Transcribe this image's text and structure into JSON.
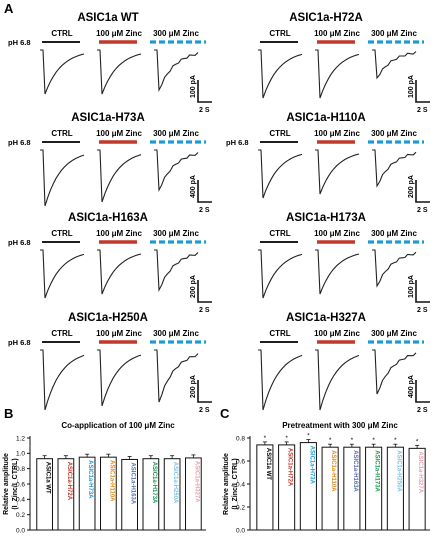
{
  "panel_letters": [
    "A",
    "B",
    "C"
  ],
  "ph_label": "pH 6.8",
  "condition_labels": [
    "CTRL",
    "100 μM Zinc",
    "300 μM Zinc"
  ],
  "colors": {
    "co_application_bar": "#c0392b",
    "pretreatment_bar": "#1e9bd7",
    "ctrl_bar": "#000000",
    "trace": "#222222"
  },
  "current_panels": [
    {
      "title": "ASIC1a WT",
      "show_ph": true,
      "amp_label": "100 pA",
      "time_label": "2 S",
      "depth": [
        0.55,
        0.55,
        0.5
      ]
    },
    {
      "title": "ASIC1a-H72A",
      "show_ph": false,
      "amp_label": "100 pA",
      "time_label": "2 S",
      "depth": [
        0.6,
        0.6,
        0.35
      ]
    },
    {
      "title": "ASIC1a-H73A",
      "show_ph": true,
      "amp_label": "400 pA",
      "time_label": "2 S",
      "depth": [
        0.7,
        0.65,
        0.5
      ]
    },
    {
      "title": "ASIC1a-H110A",
      "show_ph": true,
      "amp_label": "200 pA",
      "time_label": "2 S",
      "depth": [
        0.6,
        0.55,
        0.45
      ]
    },
    {
      "title": "ASIC1a-H163A",
      "show_ph": true,
      "amp_label": "200 pA",
      "time_label": "2 S",
      "depth": [
        0.6,
        0.55,
        0.5
      ]
    },
    {
      "title": "ASIC1a-H173A",
      "show_ph": false,
      "amp_label": "100 pA",
      "time_label": "2 S",
      "depth": [
        0.6,
        0.55,
        0.45
      ]
    },
    {
      "title": "ASIC1a-H250A",
      "show_ph": true,
      "amp_label": "200 pA",
      "time_label": "2 S",
      "depth": [
        0.75,
        0.7,
        0.65
      ]
    },
    {
      "title": "ASIC1a-H327A",
      "show_ph": false,
      "amp_label": "400 pA",
      "time_label": "2 S",
      "depth": [
        0.75,
        0.75,
        0.55
      ]
    }
  ],
  "chart_data": [
    {
      "type": "bar",
      "title": "Co-application of 100 μM Zinc",
      "ylabel": "Relative amplitude",
      "ylabel_sub": "(I_Zinc/I_CTRL)",
      "ylim": [
        0.0,
        1.2
      ],
      "yticks": [
        "0.0",
        "0.2",
        "0.4",
        "0.6",
        "0.8",
        "1.0",
        "1.2"
      ],
      "categories": [
        "ASIC1a WT",
        "ASIC1a-H72A",
        "ASIC1a-H73A",
        "ASIC1a-H110A",
        "ASIC1a-H163A",
        "ASIC1a-H173A",
        "ASIC1a-H250A",
        "ASIC1a-H327A"
      ],
      "values": [
        0.93,
        0.93,
        0.95,
        0.95,
        0.92,
        0.93,
        0.93,
        0.94
      ],
      "label_colors": [
        "#000000",
        "#c0392b",
        "#1e9bd7",
        "#e08a1e",
        "#5a6fa8",
        "#1a9a50",
        "#7fc4d8",
        "#e8a0b0"
      ],
      "significance": [
        "",
        "",
        "",
        "",
        "",
        "",
        "",
        ""
      ]
    },
    {
      "type": "bar",
      "title": "Pretreatment with 300 μM Zinc",
      "ylabel": "Relative amplitude",
      "ylabel_sub": "(I_Zinc/I_CTRL)",
      "ylim": [
        0.0,
        0.8
      ],
      "yticks": [
        "0.0",
        "0.2",
        "0.4",
        "0.6",
        "0.8"
      ],
      "categories": [
        "ASIC1a WT",
        "ASIC1a-H72A",
        "ASIC1a-H73A",
        "ASIC1a-H110A",
        "ASIC1a-H163A",
        "ASIC1a-H173A",
        "ASIC1a-H250A",
        "ASIC1a-H327A"
      ],
      "values": [
        0.74,
        0.74,
        0.76,
        0.72,
        0.72,
        0.72,
        0.72,
        0.71
      ],
      "label_colors": [
        "#000000",
        "#c0392b",
        "#1e9bd7",
        "#e08a1e",
        "#5a6fa8",
        "#1a9a50",
        "#7fc4d8",
        "#e8a0b0"
      ],
      "significance": [
        "*",
        "*",
        "*",
        "*",
        "*",
        "*",
        "*",
        "*"
      ]
    }
  ]
}
